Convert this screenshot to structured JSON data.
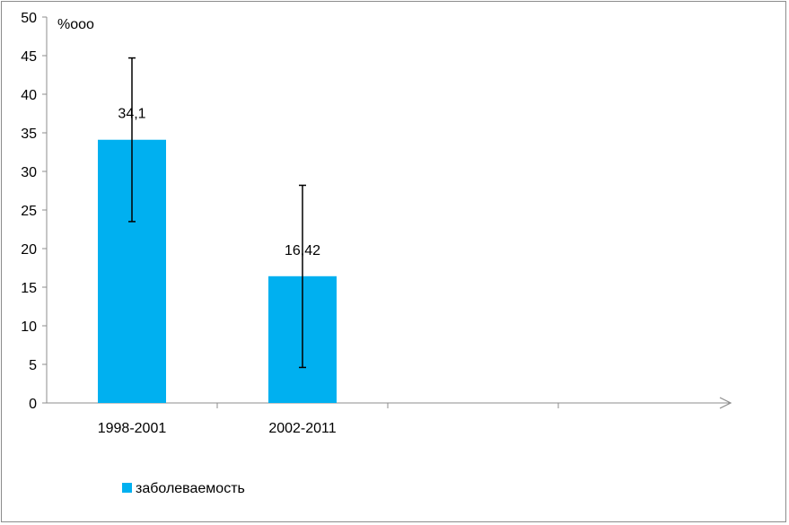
{
  "chart_data": {
    "type": "bar",
    "categories": [
      "1998-2001",
      "2002-2011",
      "",
      ""
    ],
    "series": [
      {
        "name": "заболеваемость",
        "values": [
          34.1,
          16.42,
          null,
          null
        ],
        "data_labels": [
          "34,1",
          "16,42",
          "",
          ""
        ],
        "error_high": [
          44.7,
          28.2,
          null,
          null
        ],
        "error_low": [
          23.5,
          4.6,
          null,
          null
        ],
        "color": "#00b0f0"
      }
    ],
    "ylabel": "%ooo",
    "ylim": [
      0,
      50
    ],
    "yticks": [
      0,
      5,
      10,
      15,
      20,
      25,
      30,
      35,
      40,
      45,
      50
    ],
    "ytick_labels": [
      "0",
      "5",
      "10",
      "15",
      "20",
      "25",
      "30",
      "35",
      "40",
      "45",
      "50"
    ],
    "grid": false,
    "legend": "bottom-left"
  }
}
